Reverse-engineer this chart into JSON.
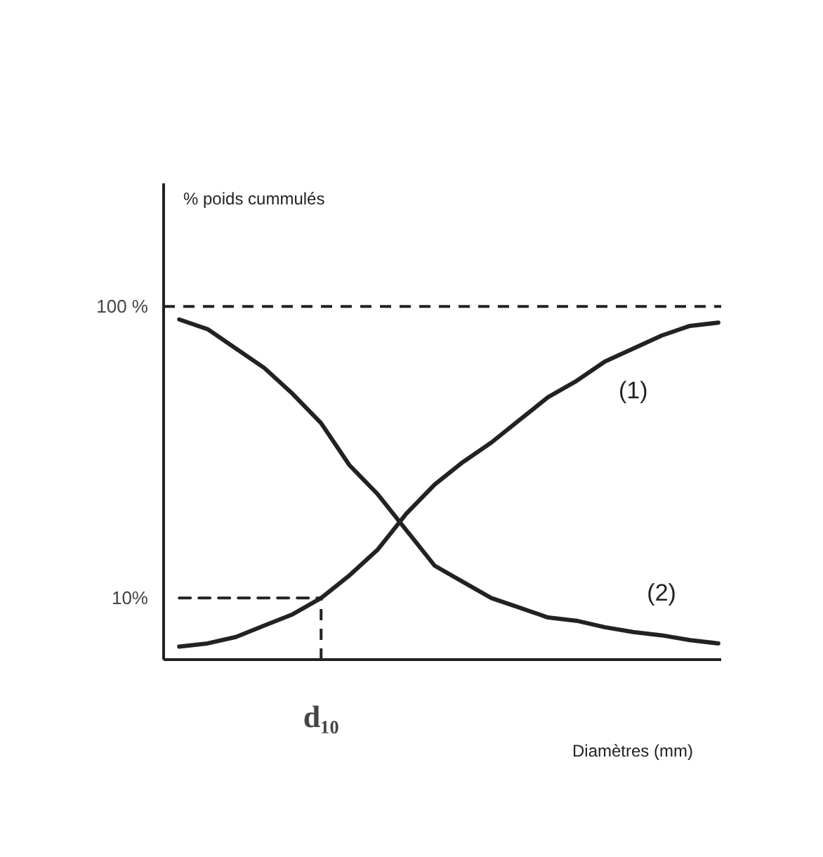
{
  "chart_data": {
    "type": "line",
    "xlabel": "Diamètres (mm)",
    "ylabel": "% poids cummulés",
    "categories": [
      null,
      null,
      null,
      null,
      null,
      "d₁₀",
      null,
      null,
      null,
      null,
      null,
      null,
      null,
      null,
      null,
      null,
      null,
      null,
      null,
      null
    ],
    "series": [
      {
        "name": "(1)",
        "color": "#222222",
        "values": [
          -5,
          -4,
          -2,
          1.5,
          5,
          10,
          17,
          25,
          36,
          45,
          52,
          58,
          65,
          72,
          77,
          83,
          87,
          91,
          94,
          95
        ]
      },
      {
        "name": "(2)",
        "color": "#222222",
        "values": [
          96,
          93,
          87,
          81,
          73,
          64,
          51,
          42,
          31,
          20,
          15,
          10,
          7,
          4,
          3,
          1,
          -0.5,
          -1.5,
          -3,
          -4
        ]
      },
      {
        "color": "#222222",
        "line_style": "dashed",
        "values": [
          10,
          10,
          10,
          10,
          10,
          10,
          null,
          null,
          null,
          null,
          null,
          null,
          null,
          null,
          null,
          null,
          null,
          null,
          null,
          null
        ]
      }
    ],
    "ylim": [
      -9,
      138
    ],
    "yticks": [
      {
        "value": 100,
        "label": "100 %"
      },
      {
        "value": 10,
        "label": "10%"
      }
    ],
    "ref_lines": [
      {
        "axis": "y",
        "value": 100,
        "line_style": "dashed",
        "color": "#222222"
      },
      {
        "axis": "x",
        "value": "d₁₀",
        "line_style": "dashed",
        "color": "#222222"
      }
    ],
    "grid": false
  }
}
